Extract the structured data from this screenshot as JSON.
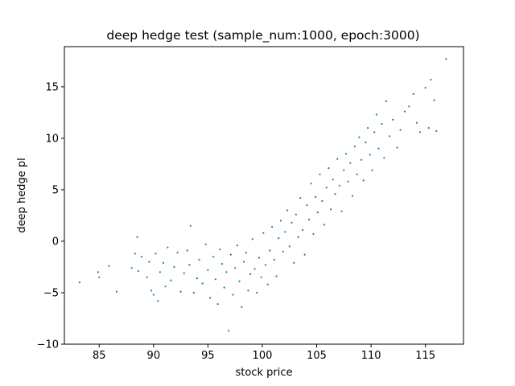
{
  "chart_data": {
    "type": "scatter",
    "title": "deep hedge test (sample_num:1000, epoch:3000)",
    "xlabel": "stock price",
    "ylabel": "deep hedge pl",
    "xlim": [
      81.8,
      118.5
    ],
    "ylim": [
      -10.0,
      18.9
    ],
    "xticks": [
      85,
      90,
      95,
      100,
      105,
      110,
      115
    ],
    "yticks": [
      -10,
      -5,
      0,
      5,
      10,
      15
    ],
    "grid": false,
    "legend": "none",
    "marker_color": "#1f77b4",
    "series": [
      {
        "points": [
          [
            83.2,
            -4.0
          ],
          [
            84.9,
            -3.0
          ],
          [
            85.0,
            -3.5
          ],
          [
            85.9,
            -2.4
          ],
          [
            86.6,
            -4.9
          ],
          [
            88.0,
            -2.6
          ],
          [
            88.3,
            -1.2
          ],
          [
            88.5,
            0.4
          ],
          [
            88.6,
            -2.9
          ],
          [
            88.9,
            -1.5
          ],
          [
            89.4,
            -3.5
          ],
          [
            89.6,
            -2.0
          ],
          [
            89.8,
            -4.8
          ],
          [
            90.0,
            -5.2
          ],
          [
            90.2,
            -1.2
          ],
          [
            90.4,
            -5.8
          ],
          [
            90.6,
            -3.0
          ],
          [
            90.9,
            -2.1
          ],
          [
            91.1,
            -4.4
          ],
          [
            91.3,
            -0.6
          ],
          [
            91.6,
            -3.8
          ],
          [
            91.9,
            -2.5
          ],
          [
            92.2,
            -1.1
          ],
          [
            92.5,
            -4.9
          ],
          [
            92.8,
            -3.1
          ],
          [
            93.1,
            -0.9
          ],
          [
            93.3,
            -2.3
          ],
          [
            93.4,
            1.5
          ],
          [
            93.7,
            -5.0
          ],
          [
            94.0,
            -3.6
          ],
          [
            94.2,
            -1.8
          ],
          [
            94.5,
            -4.1
          ],
          [
            94.8,
            -0.3
          ],
          [
            95.0,
            -2.8
          ],
          [
            95.2,
            -5.5
          ],
          [
            95.5,
            -1.5
          ],
          [
            95.7,
            -3.7
          ],
          [
            95.9,
            -6.1
          ],
          [
            96.1,
            -0.8
          ],
          [
            96.3,
            -2.2
          ],
          [
            96.5,
            -4.5
          ],
          [
            96.7,
            -3.0
          ],
          [
            96.9,
            -8.7
          ],
          [
            97.1,
            -1.3
          ],
          [
            97.3,
            -5.2
          ],
          [
            97.5,
            -2.6
          ],
          [
            97.7,
            -0.4
          ],
          [
            97.9,
            -3.9
          ],
          [
            98.1,
            -6.4
          ],
          [
            98.3,
            -2.0
          ],
          [
            98.5,
            -1.1
          ],
          [
            98.7,
            -4.8
          ],
          [
            98.9,
            -3.2
          ],
          [
            99.1,
            0.2
          ],
          [
            99.3,
            -2.7
          ],
          [
            99.5,
            -5.0
          ],
          [
            99.7,
            -1.6
          ],
          [
            99.9,
            -3.5
          ],
          [
            100.1,
            0.8
          ],
          [
            100.3,
            -2.3
          ],
          [
            100.5,
            -4.2
          ],
          [
            100.7,
            -0.9
          ],
          [
            100.9,
            1.4
          ],
          [
            101.1,
            -1.8
          ],
          [
            101.3,
            -3.4
          ],
          [
            101.5,
            0.3
          ],
          [
            101.7,
            2.0
          ],
          [
            101.9,
            -1.0
          ],
          [
            102.1,
            0.9
          ],
          [
            102.3,
            3.0
          ],
          [
            102.5,
            -0.5
          ],
          [
            102.7,
            1.8
          ],
          [
            102.9,
            -2.1
          ],
          [
            103.1,
            2.6
          ],
          [
            103.3,
            0.4
          ],
          [
            103.5,
            4.2
          ],
          [
            103.7,
            1.1
          ],
          [
            103.9,
            -1.3
          ],
          [
            104.1,
            3.5
          ],
          [
            104.3,
            2.1
          ],
          [
            104.5,
            5.6
          ],
          [
            104.7,
            0.7
          ],
          [
            104.9,
            4.3
          ],
          [
            105.1,
            2.8
          ],
          [
            105.3,
            6.5
          ],
          [
            105.5,
            3.9
          ],
          [
            105.7,
            1.6
          ],
          [
            105.9,
            5.2
          ],
          [
            106.1,
            7.1
          ],
          [
            106.3,
            3.1
          ],
          [
            106.5,
            6.0
          ],
          [
            106.7,
            4.6
          ],
          [
            106.9,
            8.0
          ],
          [
            107.1,
            5.4
          ],
          [
            107.3,
            2.9
          ],
          [
            107.5,
            6.9
          ],
          [
            107.7,
            8.5
          ],
          [
            107.9,
            5.8
          ],
          [
            108.1,
            7.6
          ],
          [
            108.3,
            4.4
          ],
          [
            108.5,
            9.2
          ],
          [
            108.7,
            6.5
          ],
          [
            108.9,
            10.1
          ],
          [
            109.1,
            7.9
          ],
          [
            109.3,
            5.9
          ],
          [
            109.5,
            9.6
          ],
          [
            109.7,
            11.0
          ],
          [
            109.9,
            8.4
          ],
          [
            110.1,
            6.9
          ],
          [
            110.3,
            10.6
          ],
          [
            110.5,
            12.3
          ],
          [
            110.7,
            9.0
          ],
          [
            111.0,
            11.4
          ],
          [
            111.2,
            8.1
          ],
          [
            111.4,
            13.6
          ],
          [
            111.7,
            10.2
          ],
          [
            112.0,
            11.8
          ],
          [
            112.4,
            9.1
          ],
          [
            112.7,
            10.8
          ],
          [
            113.1,
            12.6
          ],
          [
            113.5,
            13.1
          ],
          [
            113.9,
            14.3
          ],
          [
            114.2,
            11.5
          ],
          [
            114.5,
            10.6
          ],
          [
            115.0,
            14.9
          ],
          [
            115.3,
            11.0
          ],
          [
            115.5,
            15.7
          ],
          [
            115.8,
            13.7
          ],
          [
            116.0,
            10.7
          ],
          [
            116.9,
            17.7
          ]
        ]
      }
    ]
  }
}
